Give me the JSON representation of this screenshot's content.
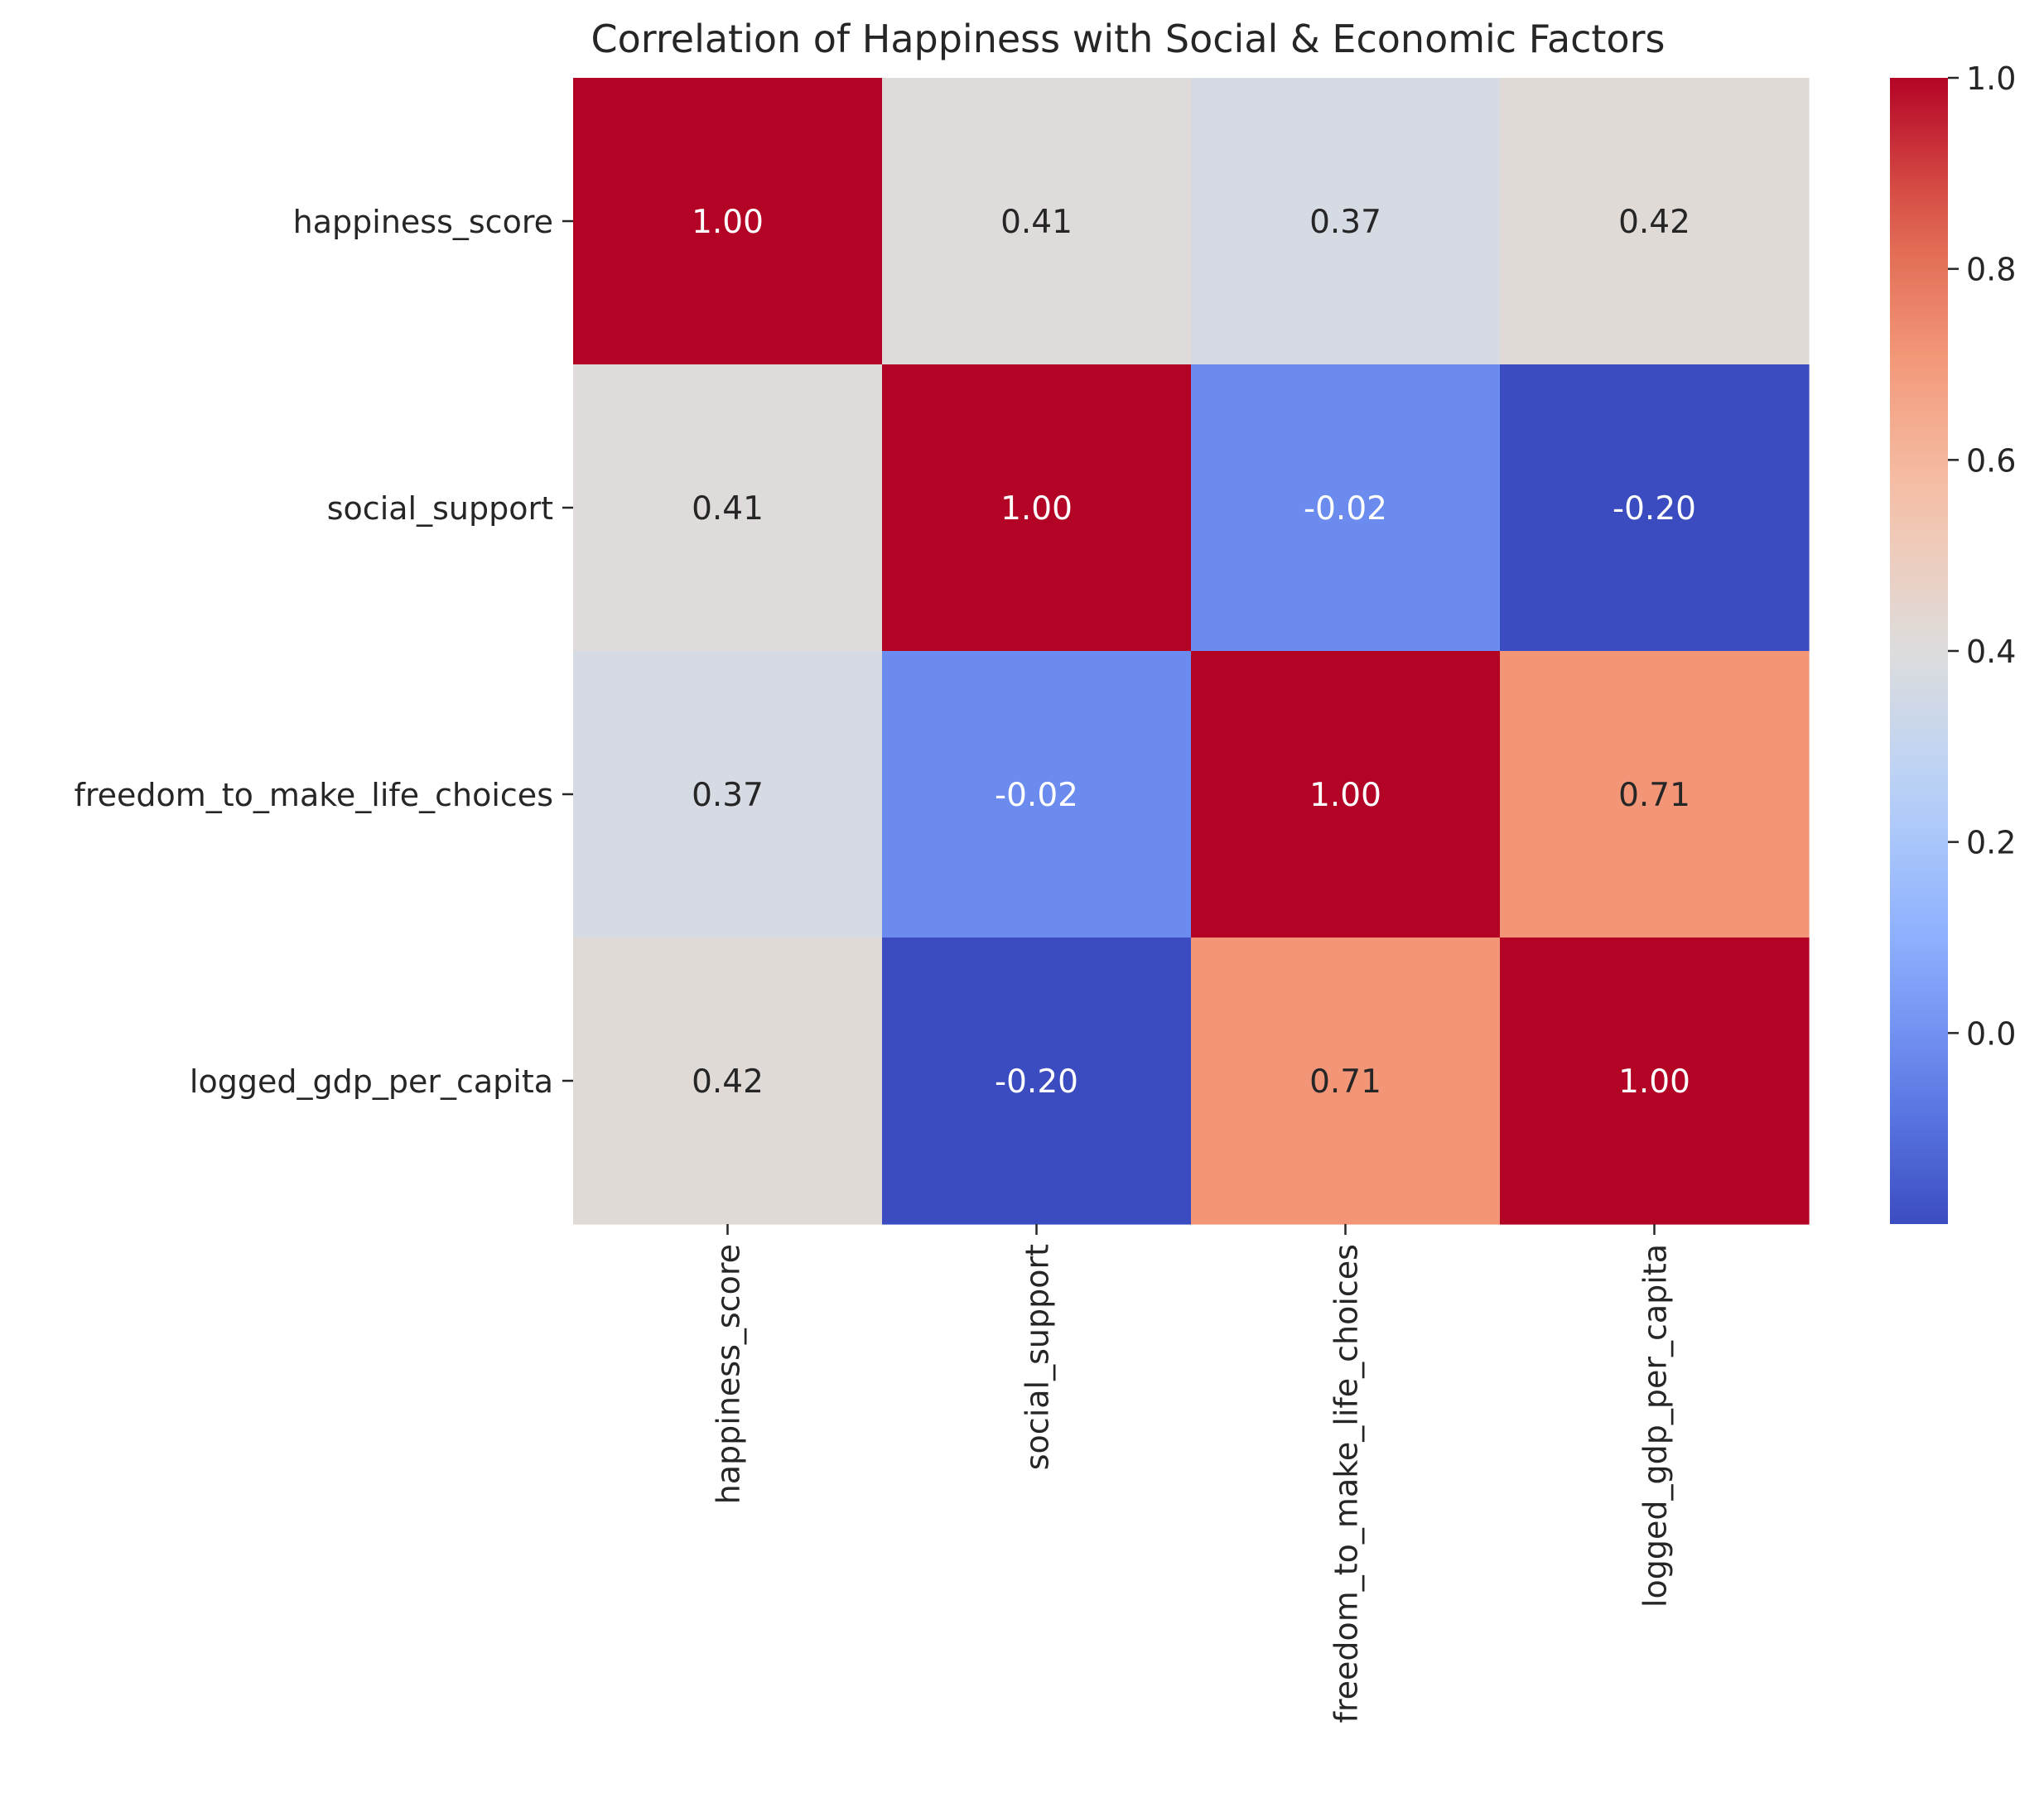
{
  "chart_data": {
    "type": "heatmap",
    "title": "Correlation of Happiness with Social & Economic Factors",
    "xlabel": "",
    "ylabel": "",
    "rows": [
      "happiness_score",
      "social_support",
      "freedom_to_make_life_choices",
      "logged_gdp_per_capita"
    ],
    "columns": [
      "happiness_score",
      "social_support",
      "freedom_to_make_life_choices",
      "logged_gdp_per_capita"
    ],
    "values": [
      [
        1.0,
        0.41,
        0.37,
        0.42
      ],
      [
        0.41,
        1.0,
        -0.02,
        -0.2
      ],
      [
        0.37,
        -0.02,
        1.0,
        0.71
      ],
      [
        0.42,
        -0.2,
        0.71,
        1.0
      ]
    ],
    "annotations": [
      [
        "1.00",
        "0.41",
        "0.37",
        "0.42"
      ],
      [
        "0.41",
        "1.00",
        "-0.02",
        "-0.20"
      ],
      [
        "0.37",
        "-0.02",
        "1.00",
        "0.71"
      ],
      [
        "0.42",
        "-0.20",
        "0.71",
        "1.00"
      ]
    ],
    "colormap": "coolwarm",
    "vmin": -0.2,
    "vmax": 1.0,
    "colorbar": {
      "position": "right",
      "ticks": [
        0.0,
        0.2,
        0.4,
        0.6,
        0.8,
        1.0
      ],
      "tick_labels": [
        "0.0",
        "0.2",
        "0.4",
        "0.6",
        "0.8",
        "1.0"
      ]
    },
    "grid": false
  }
}
